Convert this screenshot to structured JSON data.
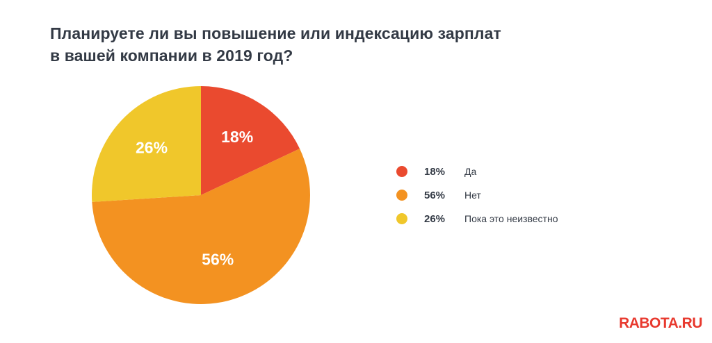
{
  "title_lines": [
    "Планируете ли вы повышение или индексацию зарплат",
    "в вашей компании в 2019 год?"
  ],
  "chart_data": {
    "type": "pie",
    "title": "Планируете ли вы повышение или индексацию зарплат в вашей компании в 2019 год?",
    "start": "12 o'clock, clockwise",
    "legend_placement": "right",
    "slices": [
      {
        "label": "Да",
        "value": 18,
        "value_label": "18%",
        "color": "#ea4a2f"
      },
      {
        "label": "Нет",
        "value": 56,
        "value_label": "56%",
        "color": "#f39221"
      },
      {
        "label": "Пока это неизвестно",
        "value": 26,
        "value_label": "26%",
        "color": "#f0c72b"
      }
    ]
  },
  "brand": "RABOTA.RU"
}
